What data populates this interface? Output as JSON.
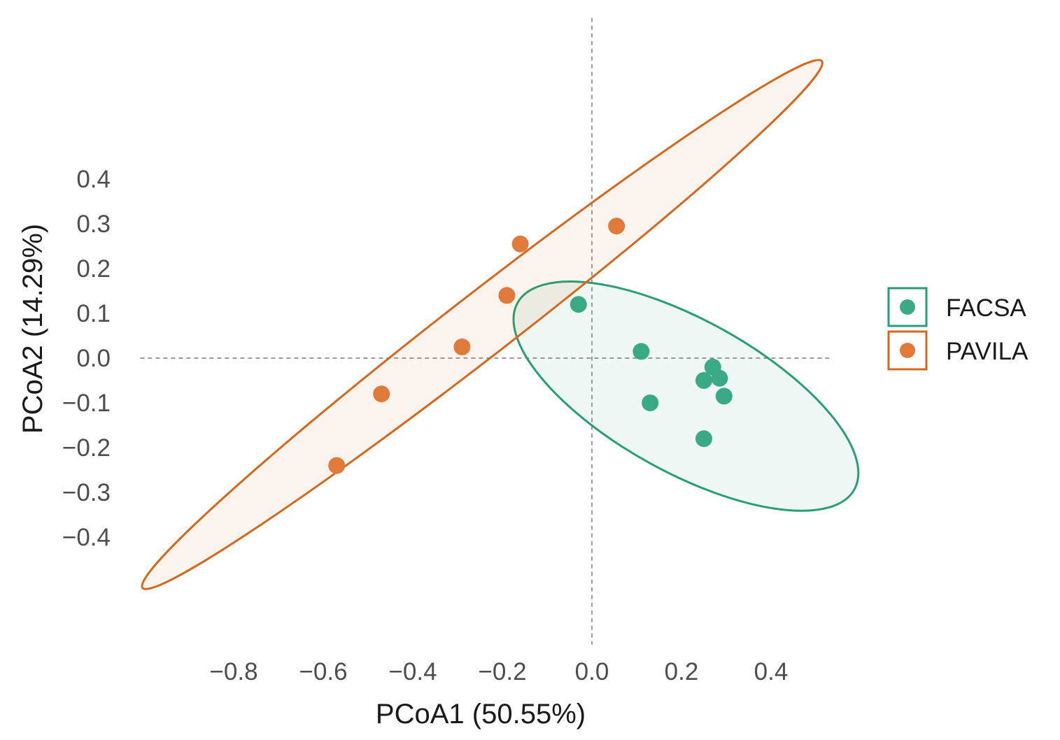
{
  "chart_data": {
    "type": "scatter",
    "title": "",
    "xlabel": "PCoA1 (50.55%)",
    "ylabel": "PCoA2 (14.29%)",
    "xlim": [
      -1.04,
      0.54
    ],
    "ylim": [
      -0.64,
      0.76
    ],
    "x_ticks": [
      -0.8,
      -0.6,
      -0.4,
      -0.2,
      0.0,
      0.2,
      0.4
    ],
    "x_tick_labels": [
      "−0.8",
      "−0.6",
      "−0.4",
      "−0.2",
      "0.0",
      "0.2",
      "0.4"
    ],
    "y_ticks": [
      0.4,
      0.3,
      0.2,
      0.1,
      0.0,
      -0.1,
      -0.2,
      -0.3,
      -0.4
    ],
    "y_tick_labels": [
      "0.4",
      "0.3",
      "0.2",
      "0.1",
      "0.0",
      "−0.1",
      "−0.2",
      "−0.3",
      "−0.4"
    ],
    "grid": false,
    "reference_lines": {
      "x": 0,
      "y": 0,
      "style": "dashed"
    },
    "legend_position": "right",
    "series": [
      {
        "name": "FACSA",
        "color": "#3aaa86",
        "ellipse_color": "#279e78",
        "points": [
          {
            "x": -0.03,
            "y": 0.12
          },
          {
            "x": 0.11,
            "y": 0.015
          },
          {
            "x": 0.27,
            "y": -0.02
          },
          {
            "x": 0.25,
            "y": -0.05
          },
          {
            "x": 0.285,
            "y": -0.045
          },
          {
            "x": 0.295,
            "y": -0.085
          },
          {
            "x": 0.13,
            "y": -0.1
          },
          {
            "x": 0.25,
            "y": -0.18
          }
        ],
        "ellipse": {
          "cx": 0.21,
          "cy": -0.085,
          "a": 0.43,
          "b": 0.17,
          "angle_deg": -29
        }
      },
      {
        "name": "PAVILA",
        "color": "#e07a3a",
        "ellipse_color": "#d2691e",
        "points": [
          {
            "x": 0.055,
            "y": 0.295
          },
          {
            "x": -0.16,
            "y": 0.255
          },
          {
            "x": -0.19,
            "y": 0.14
          },
          {
            "x": -0.29,
            "y": 0.025
          },
          {
            "x": -0.47,
            "y": -0.08
          },
          {
            "x": -0.57,
            "y": -0.24
          }
        ],
        "ellipse": {
          "cx": -0.245,
          "cy": 0.075,
          "a": 0.96,
          "b": 0.07,
          "angle_deg": 37.8
        }
      }
    ]
  }
}
